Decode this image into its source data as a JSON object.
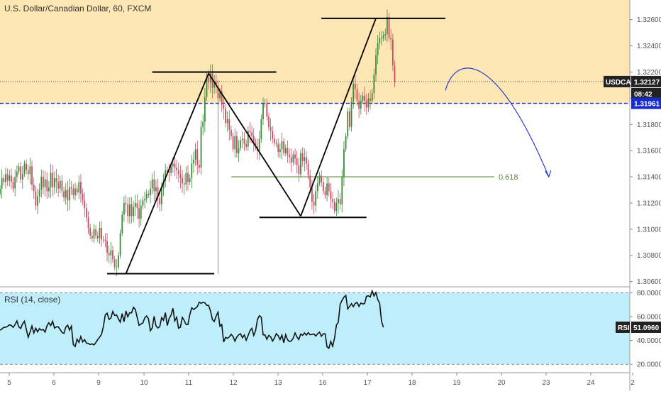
{
  "colors": {
    "zone_fill": "#fbe6b4",
    "rsi_fill": "#bfeefb",
    "up_candle": "#3a8a3a",
    "down_candle": "#cc4b63",
    "support_line": "#1a2bcc",
    "fib_line": "#5a8a3a",
    "rsi_line": "#111111",
    "arrow": "#2a3bd4",
    "tag_dark": "#222222"
  },
  "chart_data": [
    {
      "type": "candlestick",
      "title": "U.S. Dollar/Canadian Dollar, 60, FXCM",
      "x_ticks": [
        "5",
        "6",
        "9",
        "10",
        "11",
        "12",
        "13",
        "16",
        "17",
        "18",
        "19",
        "20",
        "23",
        "24",
        "2"
      ],
      "y_ticks": [
        "1.32600",
        "1.32400",
        "1.32200",
        "1.32000",
        "1.31800",
        "1.31600",
        "1.31400",
        "1.31200",
        "1.31000",
        "1.30800",
        "1.30600"
      ],
      "ylim": [
        1.3056,
        1.3275
      ],
      "series": [
        {
          "close": [
            1.3131,
            1.3139,
            1.3136,
            1.3142,
            1.3137,
            1.3141,
            1.3136,
            1.3131,
            1.314,
            1.3144,
            1.3148,
            1.3138,
            1.3142,
            1.315,
            1.3145,
            1.3142,
            1.3148,
            1.3134,
            1.3129,
            1.3118,
            1.3125,
            1.313,
            1.314,
            1.3132,
            1.3138,
            1.3129,
            1.3132,
            1.3143,
            1.3132,
            1.3139,
            1.3136,
            1.3131,
            1.3137,
            1.3129,
            1.3124,
            1.313,
            1.3122,
            1.3132,
            1.3131,
            1.3126,
            1.3131,
            1.3128,
            1.3136,
            1.3127,
            1.3122,
            1.3116,
            1.3109,
            1.3101,
            1.3095,
            1.3093,
            1.31,
            1.3095,
            1.3093,
            1.3101,
            1.3092,
            1.3092,
            1.3091,
            1.3082,
            1.308,
            1.3084,
            1.3077,
            1.3071,
            1.3071,
            1.308,
            1.3097,
            1.3111,
            1.312,
            1.3119,
            1.311,
            1.3119,
            1.311,
            1.3117,
            1.312,
            1.3116,
            1.3108,
            1.3118,
            1.3122,
            1.3123,
            1.3127,
            1.3126,
            1.3131,
            1.3138,
            1.3129,
            1.3132,
            1.3124,
            1.3119,
            1.3131,
            1.3137,
            1.3145,
            1.3144,
            1.3143,
            1.3148,
            1.315,
            1.3147,
            1.3145,
            1.3142,
            1.3139,
            1.3135,
            1.3134,
            1.3143,
            1.3136,
            1.3139,
            1.315,
            1.3153,
            1.3161,
            1.3149,
            1.3147,
            1.3178,
            1.3182,
            1.3201,
            1.3216,
            1.3212,
            1.3219,
            1.3208,
            1.3213,
            1.3209,
            1.32,
            1.3205,
            1.3195,
            1.3192,
            1.3181,
            1.3184,
            1.3176,
            1.3171,
            1.3161,
            1.3171,
            1.3158,
            1.3162,
            1.3168,
            1.3169,
            1.3165,
            1.3163,
            1.3175,
            1.3174,
            1.3171,
            1.3166,
            1.3163,
            1.316,
            1.3169,
            1.3184,
            1.3196,
            1.3196,
            1.3186,
            1.3178,
            1.3175,
            1.3169,
            1.3166,
            1.3165,
            1.3159,
            1.3161,
            1.3167,
            1.3158,
            1.3162,
            1.3157,
            1.3155,
            1.3151,
            1.3157,
            1.3154,
            1.3149,
            1.3142,
            1.3158,
            1.3152,
            1.3155,
            1.315,
            1.3141,
            1.3132,
            1.3121,
            1.3118,
            1.3129,
            1.3135,
            1.3141,
            1.3136,
            1.3129,
            1.3126,
            1.3135,
            1.3129,
            1.3123,
            1.3121,
            1.3114,
            1.312,
            1.3123,
            1.3119,
            1.314,
            1.3161,
            1.3171,
            1.319,
            1.3178,
            1.3197,
            1.3211,
            1.3207,
            1.3198,
            1.3192,
            1.3198,
            1.3202,
            1.3198,
            1.3193,
            1.32,
            1.3198,
            1.3204,
            1.3218,
            1.3233,
            1.3242,
            1.3246,
            1.3246,
            1.3248,
            1.3249,
            1.3262,
            1.3246,
            1.3245,
            1.3225,
            1.3212
          ]
        }
      ],
      "annotations": [
        {
          "type": "hline",
          "y": 1.3066,
          "x_start_bar": 57,
          "x_end_bar": 114,
          "color": "#000000"
        },
        {
          "type": "hline",
          "y": 1.322,
          "x_start_bar": 81,
          "x_end_bar": 147,
          "color": "#000000"
        },
        {
          "type": "hline",
          "y": 1.3109,
          "x_start_bar": 138,
          "x_end_bar": 195,
          "color": "#000000"
        },
        {
          "type": "hline",
          "y": 1.3261,
          "x_start_bar": 171,
          "x_end_bar": 237,
          "color": "#000000"
        },
        {
          "type": "trend",
          "x1_bar": 67,
          "y1": 1.3066,
          "x2_bar": 111,
          "y2": 1.3219,
          "color": "#000000"
        },
        {
          "type": "trend",
          "x1_bar": 111,
          "y1": 1.3219,
          "x2_bar": 160,
          "y2": 1.311,
          "color": "#000000"
        },
        {
          "type": "trend",
          "x1_bar": 160,
          "y1": 1.311,
          "x2_bar": 200,
          "y2": 1.3261,
          "color": "#000000"
        },
        {
          "type": "hline",
          "y": 1.31961,
          "x_start_bar": 0,
          "x_end_bar": 290,
          "style": "dashed",
          "color": "#1a2bcc"
        },
        {
          "type": "hline",
          "y": 1.32127,
          "x_start_bar": 0,
          "x_end_bar": 290,
          "style": "dotted",
          "color": "#555555"
        },
        {
          "type": "hline",
          "y": 1.314,
          "x_start_bar": 123,
          "x_end_bar": 263,
          "color": "#5a8a3a",
          "label": "0.618"
        },
        {
          "type": "curve_arrow",
          "color": "#2a3bd4"
        }
      ],
      "zone": {
        "y_from": 1.31961,
        "y_to": 1.3275,
        "color": "#fbe6b4"
      },
      "price_tags": [
        {
          "label": "USDCAD",
          "value": "1.32127",
          "price": 1.32127
        },
        {
          "label": "",
          "value": "08:42",
          "price": 1.3208
        },
        {
          "label": "",
          "value": "1.31961",
          "price": 1.31961
        }
      ]
    },
    {
      "type": "line",
      "title": "RSI (14, close)",
      "ylim": [
        13,
        85
      ],
      "y_ticks": [
        "80.0000",
        "60.0000",
        "40.0000",
        "20.0000"
      ],
      "levels": [
        80,
        20
      ],
      "last_value_label": "RSI",
      "last_value": "51.0960",
      "series": [
        {
          "values": [
            48.6,
            49.7,
            51.0,
            51.1,
            51.8,
            53.2,
            52.6,
            51.0,
            53.3,
            56.4,
            51.4,
            50.1,
            53.9,
            56.1,
            49.4,
            42.7,
            47.0,
            52.1,
            46.3,
            50.3,
            47.2,
            50.0,
            48.7,
            49.2,
            47.0,
            52.3,
            54.9,
            52.5,
            56.1,
            50.4,
            51.4,
            51.5,
            49.2,
            46.8,
            45.9,
            51.2,
            52.8,
            48.7,
            52.0,
            36.6,
            35.0,
            41.1,
            38.4,
            43.3,
            38.8,
            40.7,
            37.9,
            37.5,
            36.6,
            37.2,
            36.3,
            38.3,
            40.8,
            42.8,
            45.1,
            51.6,
            61.4,
            62.9,
            57.7,
            58.8,
            64.3,
            61.0,
            61.5,
            58.2,
            55.4,
            62.6,
            55.7,
            64.8,
            59.9,
            63.3,
            63.1,
            67.8,
            66.0,
            59.3,
            52.7,
            53.8,
            54.6,
            58.9,
            60.6,
            58.1,
            48.2,
            50.6,
            60.3,
            52.3,
            50.5,
            51.7,
            59.2,
            56.9,
            63.3,
            52.5,
            58.4,
            61.2,
            67.0,
            56.4,
            59.5,
            50.3,
            51.1,
            59.4,
            56.8,
            53.4,
            53.4,
            61.7,
            67.4,
            66.0,
            67.0,
            68.4,
            72.1,
            71.1,
            72.0,
            71.6,
            69.4,
            69.4,
            64.8,
            57.6,
            55.9,
            60.4,
            63.7,
            52.0,
            53.4,
            38.7,
            42.6,
            41.8,
            43.0,
            45.2,
            43.3,
            39.4,
            42.9,
            44.8,
            45.6,
            42.3,
            44.6,
            40.3,
            44.1,
            48.2,
            50.2,
            44.2,
            48.3,
            57.6,
            60.8,
            59.6,
            44.7,
            44.7,
            41.0,
            44.3,
            43.1,
            39.5,
            42.1,
            45.7,
            44.1,
            40.8,
            44.5,
            38.1,
            44.9,
            40.6,
            39.2,
            39.6,
            42.0,
            46.3,
            43.0,
            40.8,
            45.4,
            44.3,
            46.3,
            44.5,
            46.6,
            44.8,
            45.1,
            45.5,
            43.7,
            45.7,
            47.0,
            43.5,
            45.6,
            45.6,
            34.6,
            33.5,
            39.2,
            35.1,
            42.0,
            52.9,
            55.3,
            70.4,
            73.7,
            76.3,
            77.8,
            66.5,
            68.6,
            70.9,
            68.4,
            71.1,
            71.9,
            68.6,
            71.3,
            70.7,
            70.9,
            77.1,
            77.4,
            76.5,
            81.6,
            77.3,
            80.2,
            74.3,
            71.2,
            56.0,
            51.1
          ]
        }
      ]
    }
  ],
  "x_label_positions": [
    5,
    6,
    9,
    10,
    11,
    12,
    13,
    16,
    17,
    18,
    19,
    20,
    23,
    24,
    2
  ]
}
